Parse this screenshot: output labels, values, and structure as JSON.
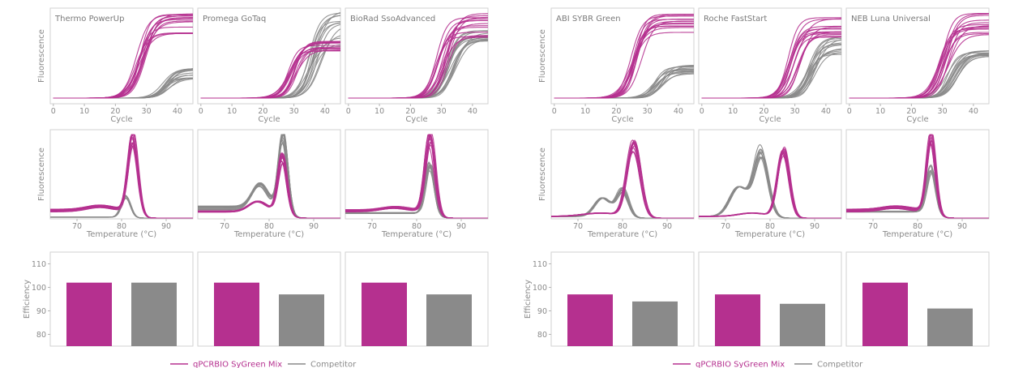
{
  "legend": {
    "primary_label": "qPCRBIO SyGreen Mix",
    "competitor_label": "Competitor"
  },
  "colors": {
    "primary": "#b5308f",
    "competitor": "#8a8a8a"
  },
  "chart_data": [
    {
      "type": "line",
      "kind": "amplification",
      "xlabel": "Cycle",
      "ylabel": "Fluorescence",
      "xticks": [
        0,
        10,
        20,
        30,
        40
      ],
      "xlim": [
        -1,
        45
      ],
      "panels": [
        {
          "title": "Thermo PowerUp",
          "primary": {
            "ct": 28.0,
            "spread": 3.5,
            "plateau": [
              0.72,
              0.98
            ],
            "count": 14
          },
          "competitor": {
            "ct": 36.0,
            "spread": 3.0,
            "plateau": [
              0.22,
              0.35
            ],
            "count": 14
          }
        },
        {
          "title": "Promega GoTaq",
          "primary": {
            "ct": 29.5,
            "spread": 3.0,
            "plateau": [
              0.52,
              0.66
            ],
            "count": 14
          },
          "competitor": {
            "ct": 36.5,
            "spread": 5.0,
            "plateau": [
              0.55,
              1.02
            ],
            "count": 14
          }
        },
        {
          "title": "BioRad SsoAdvanced",
          "primary": {
            "ct": 30.0,
            "spread": 4.5,
            "plateau": [
              0.7,
              0.98
            ],
            "count": 14
          },
          "competitor": {
            "ct": 33.0,
            "spread": 3.5,
            "plateau": [
              0.65,
              0.78
            ],
            "count": 14
          }
        },
        {
          "title": "ABI SYBR Green",
          "primary": {
            "ct": 26.5,
            "spread": 3.5,
            "plateau": [
              0.75,
              0.99
            ],
            "count": 14
          },
          "competitor": {
            "ct": 33.5,
            "spread": 4.0,
            "plateau": [
              0.28,
              0.38
            ],
            "count": 14
          }
        },
        {
          "title": "Roche FastStart",
          "primary": {
            "ct": 30.0,
            "spread": 4.5,
            "plateau": [
              0.68,
              0.95
            ],
            "count": 14
          },
          "competitor": {
            "ct": 35.0,
            "spread": 4.0,
            "plateau": [
              0.5,
              0.72
            ],
            "count": 14
          }
        },
        {
          "title": "NEB Luna Universal",
          "primary": {
            "ct": 30.5,
            "spread": 3.5,
            "plateau": [
              0.72,
              0.99
            ],
            "count": 14
          },
          "competitor": {
            "ct": 33.5,
            "spread": 4.0,
            "plateau": [
              0.48,
              0.55
            ],
            "count": 14
          }
        }
      ]
    },
    {
      "type": "line",
      "kind": "melt",
      "xlabel": "Temperature (°C)",
      "ylabel": "Fluorescence",
      "xticks": [
        70,
        80,
        90
      ],
      "xlim": [
        64,
        96
      ],
      "panels": [
        {
          "primary": {
            "peaks": [
              [
                82.5,
                0.92,
                1.1
              ],
              [
                75.0,
                0.05,
                3.0
              ]
            ],
            "base": 0.09,
            "count": 12
          },
          "competitor": {
            "peaks": [
              [
                81.0,
                0.26,
                1.0
              ]
            ],
            "base": 0.01,
            "count": 8
          }
        },
        {
          "primary": {
            "peaks": [
              [
                83.0,
                0.68,
                1.0
              ],
              [
                77.5,
                0.12,
                2.0
              ]
            ],
            "base": 0.08,
            "count": 12
          },
          "competitor": {
            "peaks": [
              [
                83.0,
                0.92,
                1.0
              ],
              [
                77.8,
                0.28,
                1.8
              ]
            ],
            "base": 0.12,
            "count": 12
          }
        },
        {
          "primary": {
            "peaks": [
              [
                83.0,
                0.92,
                1.1
              ],
              [
                75.0,
                0.04,
                3.0
              ]
            ],
            "base": 0.09,
            "count": 12
          },
          "competitor": {
            "peaks": [
              [
                83.0,
                0.62,
                1.0
              ]
            ],
            "base": 0.06,
            "count": 8
          }
        },
        {
          "primary": {
            "peaks": [
              [
                82.5,
                0.92,
                1.5
              ],
              [
                75.0,
                0.04,
                4.0
              ]
            ],
            "base": 0.02,
            "count": 12
          },
          "competitor": {
            "peaks": [
              [
                80.0,
                0.33,
                1.3
              ],
              [
                75.5,
                0.22,
                1.8
              ]
            ],
            "base": 0.02,
            "count": 12
          }
        },
        {
          "primary": {
            "peaks": [
              [
                83.0,
                0.88,
                1.3
              ],
              [
                76.0,
                0.04,
                3.0
              ]
            ],
            "base": 0.02,
            "count": 12
          },
          "competitor": {
            "peaks": [
              [
                78.0,
                0.82,
                1.6
              ],
              [
                73.0,
                0.35,
                2.0
              ]
            ],
            "base": 0.02,
            "count": 12
          }
        },
        {
          "primary": {
            "peaks": [
              [
                83.0,
                0.92,
                1.0
              ],
              [
                75.0,
                0.04,
                3.0
              ]
            ],
            "base": 0.09,
            "count": 12
          },
          "competitor": {
            "peaks": [
              [
                83.0,
                0.55,
                1.0
              ]
            ],
            "base": 0.08,
            "count": 8
          }
        }
      ]
    },
    {
      "type": "bar",
      "kind": "efficiency",
      "ylabel": "Efficiency",
      "ylim": [
        75,
        115
      ],
      "yticks": [
        80,
        90,
        100,
        110
      ],
      "series": [
        "qPCRBIO SyGreen Mix",
        "Competitor"
      ],
      "panels": [
        {
          "values": [
            102,
            102
          ]
        },
        {
          "values": [
            102,
            97
          ]
        },
        {
          "values": [
            102,
            97
          ]
        },
        {
          "values": [
            97,
            94
          ]
        },
        {
          "values": [
            97,
            93
          ]
        },
        {
          "values": [
            102,
            91
          ]
        }
      ]
    }
  ]
}
